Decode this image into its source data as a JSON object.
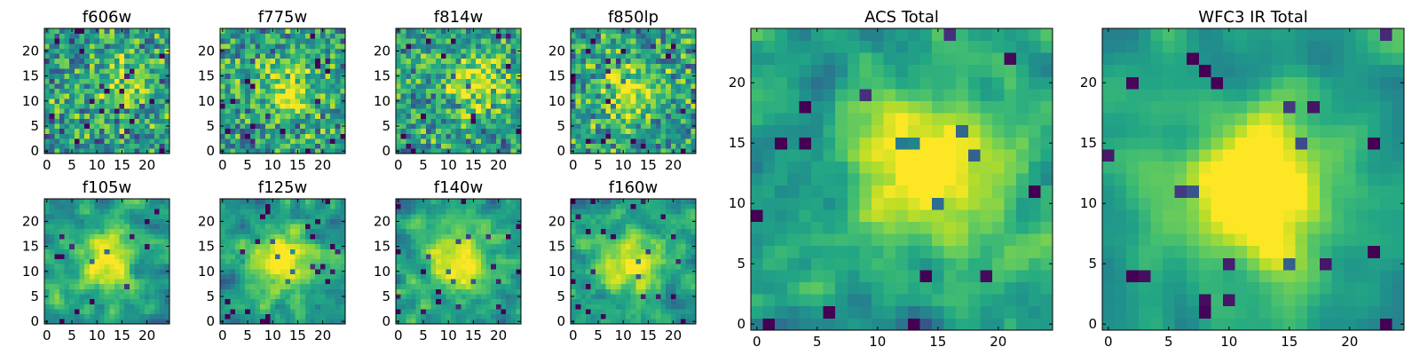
{
  "chart_data": {
    "type": "heatmap",
    "colormap": "viridis",
    "grid_size": 25,
    "panels": [
      {
        "id": "f606w",
        "title": "f606w",
        "xticks": [
          0,
          5,
          10,
          15,
          20
        ],
        "yticks": [
          0,
          5,
          10,
          15,
          20
        ],
        "seed": 11,
        "blob_center": [
          15,
          14
        ],
        "blob_strength": 0.2,
        "noise": 0.85,
        "smooth": 0
      },
      {
        "id": "f775w",
        "title": "f775w",
        "xticks": [
          0,
          5,
          10,
          15,
          20
        ],
        "yticks": [
          0,
          5,
          10,
          15,
          20
        ],
        "seed": 23,
        "blob_center": [
          13,
          12
        ],
        "blob_strength": 0.35,
        "noise": 0.8,
        "smooth": 0
      },
      {
        "id": "f814w",
        "title": "f814w",
        "xticks": [
          0,
          5,
          10,
          15,
          20
        ],
        "yticks": [
          0,
          5,
          10,
          15,
          20
        ],
        "seed": 37,
        "blob_center": [
          15,
          14
        ],
        "blob_strength": 0.4,
        "noise": 0.8,
        "smooth": 0
      },
      {
        "id": "f850lp",
        "title": "f850lp",
        "xticks": [
          0,
          5,
          10,
          15,
          20
        ],
        "yticks": [
          0,
          5,
          10,
          15,
          20
        ],
        "seed": 41,
        "blob_center": [
          11,
          12
        ],
        "blob_strength": 0.35,
        "noise": 0.8,
        "smooth": 0
      },
      {
        "id": "f105w",
        "title": "f105w",
        "xticks": [
          0,
          5,
          10,
          15,
          20
        ],
        "yticks": [
          0,
          5,
          10,
          15,
          20
        ],
        "seed": 53,
        "blob_center": [
          12,
          12
        ],
        "blob_strength": 0.45,
        "noise": 0.7,
        "smooth": 1
      },
      {
        "id": "f125w",
        "title": "f125w",
        "xticks": [
          0,
          5,
          10,
          15,
          20
        ],
        "yticks": [
          0,
          5,
          10,
          15,
          20
        ],
        "seed": 67,
        "blob_center": [
          12,
          12
        ],
        "blob_strength": 0.5,
        "noise": 0.65,
        "smooth": 1
      },
      {
        "id": "f140w",
        "title": "f140w",
        "xticks": [
          0,
          5,
          10,
          15,
          20
        ],
        "yticks": [
          0,
          5,
          10,
          15,
          20
        ],
        "seed": 71,
        "blob_center": [
          12,
          12
        ],
        "blob_strength": 0.45,
        "noise": 0.7,
        "smooth": 1
      },
      {
        "id": "f160w",
        "title": "f160w",
        "xticks": [
          0,
          5,
          10,
          15,
          20
        ],
        "yticks": [
          0,
          5,
          10,
          15,
          20
        ],
        "seed": 83,
        "blob_center": [
          11,
          11
        ],
        "blob_strength": 0.45,
        "noise": 0.7,
        "smooth": 1
      },
      {
        "id": "acs-total",
        "title": "ACS Total",
        "xticks": [
          0,
          5,
          10,
          15,
          20
        ],
        "yticks": [
          0,
          5,
          10,
          15,
          20
        ],
        "seed": 97,
        "blob_center": [
          14,
          13
        ],
        "blob_strength": 0.55,
        "noise": 0.6,
        "smooth": 1
      },
      {
        "id": "wfc3-ir-total",
        "title": "WFC3 IR Total",
        "xticks": [
          0,
          5,
          10,
          15,
          20
        ],
        "yticks": [
          0,
          5,
          10,
          15,
          20
        ],
        "seed": 101,
        "blob_center": [
          12,
          11
        ],
        "blob_strength": 0.7,
        "noise": 0.45,
        "smooth": 2
      }
    ]
  }
}
